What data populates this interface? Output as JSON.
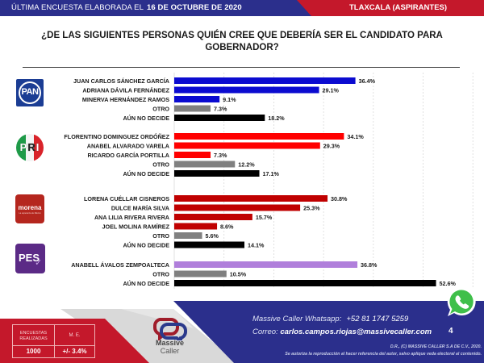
{
  "header": {
    "survey_prefix": "ÚLTIMA ENCUESTA ELABORADA EL",
    "survey_date": "16 DE OCTUBRE DE 2020",
    "region": "TLAXCALA (ASPIRANTES)",
    "colors": {
      "blue": "#2b2f8c",
      "red": "#c4182b"
    }
  },
  "question": "¿DE LAS SIGUIENTES PERSONAS QUIÉN CREE QUE DEBERÍA SER EL CANDIDATO PARA GOBERNADOR?",
  "logos": {
    "pan": {
      "icon": "pan-party-logo",
      "text": "PAN"
    },
    "pri": {
      "icon": "pri-party-logo",
      "letters": [
        "P",
        "R",
        "I"
      ]
    },
    "morena": {
      "icon": "morena-party-logo",
      "text": "morena",
      "subtext": "La esperanza de México"
    },
    "pes": {
      "icon": "pes-party-logo",
      "text": "PES",
      "check": "✓"
    }
  },
  "chart_data": {
    "type": "bar",
    "orientation": "horizontal",
    "title": "¿DE LAS SIGUIENTES PERSONAS QUIÉN CREE QUE DEBERÍA SER EL CANDIDATO PARA GOBERNADOR?",
    "xlabel": "",
    "ylabel": "",
    "xlim": [
      0,
      60
    ],
    "grid": true,
    "value_suffix": "%",
    "groups": [
      {
        "party": "PAN",
        "color": "#0b0bd0",
        "items": [
          {
            "label": "JUAN CARLOS SÁNCHEZ GARCÍA",
            "value": 36.4,
            "kind": "candidate"
          },
          {
            "label": "ADRIANA DÁVILA FERNÁNDEZ",
            "value": 29.1,
            "kind": "candidate"
          },
          {
            "label": "MINERVA HERNÁNDEZ RAMOS",
            "value": 9.1,
            "kind": "candidate"
          },
          {
            "label": "OTRO",
            "value": 7.3,
            "kind": "other"
          },
          {
            "label": "AÚN NO DECIDE",
            "value": 18.2,
            "kind": "undecided"
          }
        ]
      },
      {
        "party": "PRI",
        "color": "#ff0000",
        "items": [
          {
            "label": "FLORENTINO DOMINGUEZ ORDÓÑEZ",
            "value": 34.1,
            "kind": "candidate"
          },
          {
            "label": "ANABEL ALVARADO VARELA",
            "value": 29.3,
            "kind": "candidate"
          },
          {
            "label": "RICARDO GARCÍA PORTILLA",
            "value": 7.3,
            "kind": "candidate"
          },
          {
            "label": "OTRO",
            "value": 12.2,
            "kind": "other"
          },
          {
            "label": "AÚN NO DECIDE",
            "value": 17.1,
            "kind": "undecided"
          }
        ]
      },
      {
        "party": "MORENA",
        "color": "#c00000",
        "items": [
          {
            "label": "LORENA CUÉLLAR CISNEROS",
            "value": 30.8,
            "kind": "candidate"
          },
          {
            "label": "DULCE MARÍA SILVA",
            "value": 25.3,
            "kind": "candidate"
          },
          {
            "label": "ANA LILIA RIVERA RIVERA",
            "value": 15.7,
            "kind": "candidate"
          },
          {
            "label": "JOEL MOLINA RAMÍREZ",
            "value": 8.6,
            "kind": "candidate"
          },
          {
            "label": "OTRO",
            "value": 5.6,
            "kind": "other"
          },
          {
            "label": "AÚN NO DECIDE",
            "value": 14.1,
            "kind": "undecided"
          }
        ]
      },
      {
        "party": "PES",
        "color": "#b07fdb",
        "items": [
          {
            "label": "ANABELL ÁVALOS ZEMPOALTECA",
            "value": 36.8,
            "kind": "candidate"
          },
          {
            "label": "OTRO",
            "value": 10.5,
            "kind": "other"
          },
          {
            "label": "AÚN NO DECIDE",
            "value": 52.6,
            "kind": "undecided"
          }
        ]
      }
    ],
    "kind_colors": {
      "other": "#808080",
      "undecided": "#000000"
    }
  },
  "footer": {
    "stats": {
      "surveys_label": "ENCUESTAS REALIZADAS",
      "surveys_value": "1000",
      "margin_label": "M. E.",
      "margin_value": "+/- 3.4%"
    },
    "brand": {
      "line1": "Massive",
      "line2": "Caller"
    },
    "whatsapp_label": "Massive Caller Whatsapp:",
    "whatsapp_number": "+52 81 1747 5259",
    "email_label": "Correo:",
    "email": "carlos.campos.riojas@massivecaller.com",
    "page_number": "4",
    "legal_line1": "D.R., (C) MASSIVE CALLER S.A DE C.V., 2020.",
    "legal_line2": "Se autoriza la reproducción al hacer referencia del autor, salvo aplique veda electoral al contenido.",
    "colors": {
      "red": "#c4182b",
      "blue": "#2b2f8c",
      "gray": "#d9d9d9"
    }
  }
}
